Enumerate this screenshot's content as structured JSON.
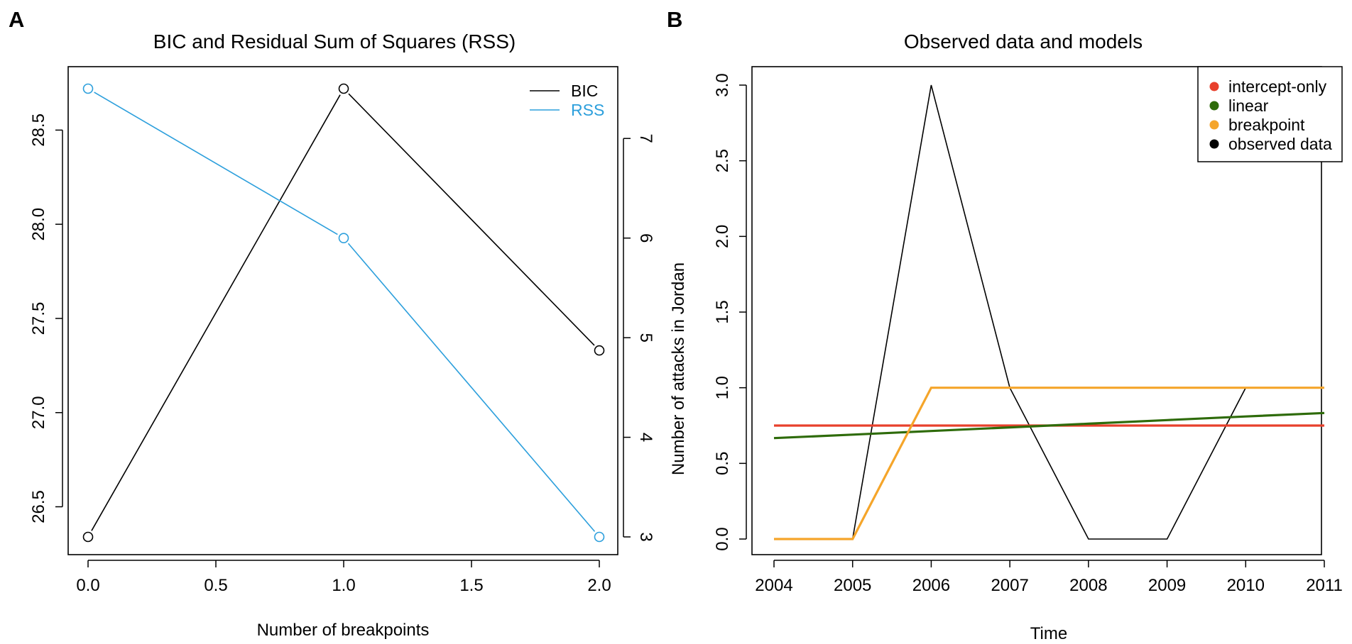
{
  "chart_data": [
    {
      "panel": "A",
      "type": "line",
      "title": "BIC and Residual Sum of Squares (RSS)",
      "xlabel": "Number of breakpoints",
      "ylabel": "",
      "ylabel_right": "Number of attacks in Jordan",
      "x": [
        0.0,
        1.0,
        2.0
      ],
      "xlim": [
        0.0,
        2.0
      ],
      "xticks": [
        "0.0",
        "0.5",
        "1.0",
        "1.5",
        "2.0"
      ],
      "ylim_left": [
        26.34,
        28.72
      ],
      "yticks_left": [
        "26.5",
        "27.0",
        "27.5",
        "28.0",
        "28.5"
      ],
      "ylim_right": [
        3,
        7.5
      ],
      "yticks_right": [
        "3",
        "4",
        "5",
        "6",
        "7"
      ],
      "series": [
        {
          "name": "BIC",
          "axis": "left",
          "color": "#000000",
          "values": [
            26.34,
            28.72,
            27.33
          ]
        },
        {
          "name": "RSS",
          "axis": "right",
          "color": "#2c9fdc",
          "values": [
            7.5,
            6.0,
            3.0
          ]
        }
      ],
      "legend": "top-right",
      "grid": false
    },
    {
      "panel": "B",
      "type": "line",
      "title": "Observed data and models",
      "xlabel": "Time",
      "ylabel": "",
      "x": [
        2004,
        2005,
        2006,
        2007,
        2008,
        2009,
        2010,
        2011
      ],
      "xticks": [
        "2004",
        "2005",
        "2006",
        "2007",
        "2008",
        "2009",
        "2010",
        "2011"
      ],
      "ylim": [
        0,
        3
      ],
      "yticks": [
        "0.0",
        "0.5",
        "1.0",
        "1.5",
        "2.0",
        "2.5",
        "3.0"
      ],
      "series": [
        {
          "name": "intercept-only",
          "color": "#e8402c",
          "values": [
            0.75,
            0.75,
            0.75,
            0.75,
            0.75,
            0.75,
            0.75,
            0.75
          ]
        },
        {
          "name": "linear",
          "color": "#2e6b0a",
          "values": [
            0.667,
            0.69,
            0.714,
            0.738,
            0.762,
            0.786,
            0.81,
            0.833
          ]
        },
        {
          "name": "breakpoint",
          "color": "#f5a52a",
          "values": [
            0,
            0,
            1,
            1,
            1,
            1,
            1,
            1
          ]
        },
        {
          "name": "observed data",
          "color": "#000000",
          "values": [
            0,
            0,
            3,
            1,
            0,
            0,
            1,
            1
          ]
        }
      ],
      "legend": "top-right",
      "grid": false
    }
  ],
  "panel_labels": [
    "A",
    "B"
  ]
}
